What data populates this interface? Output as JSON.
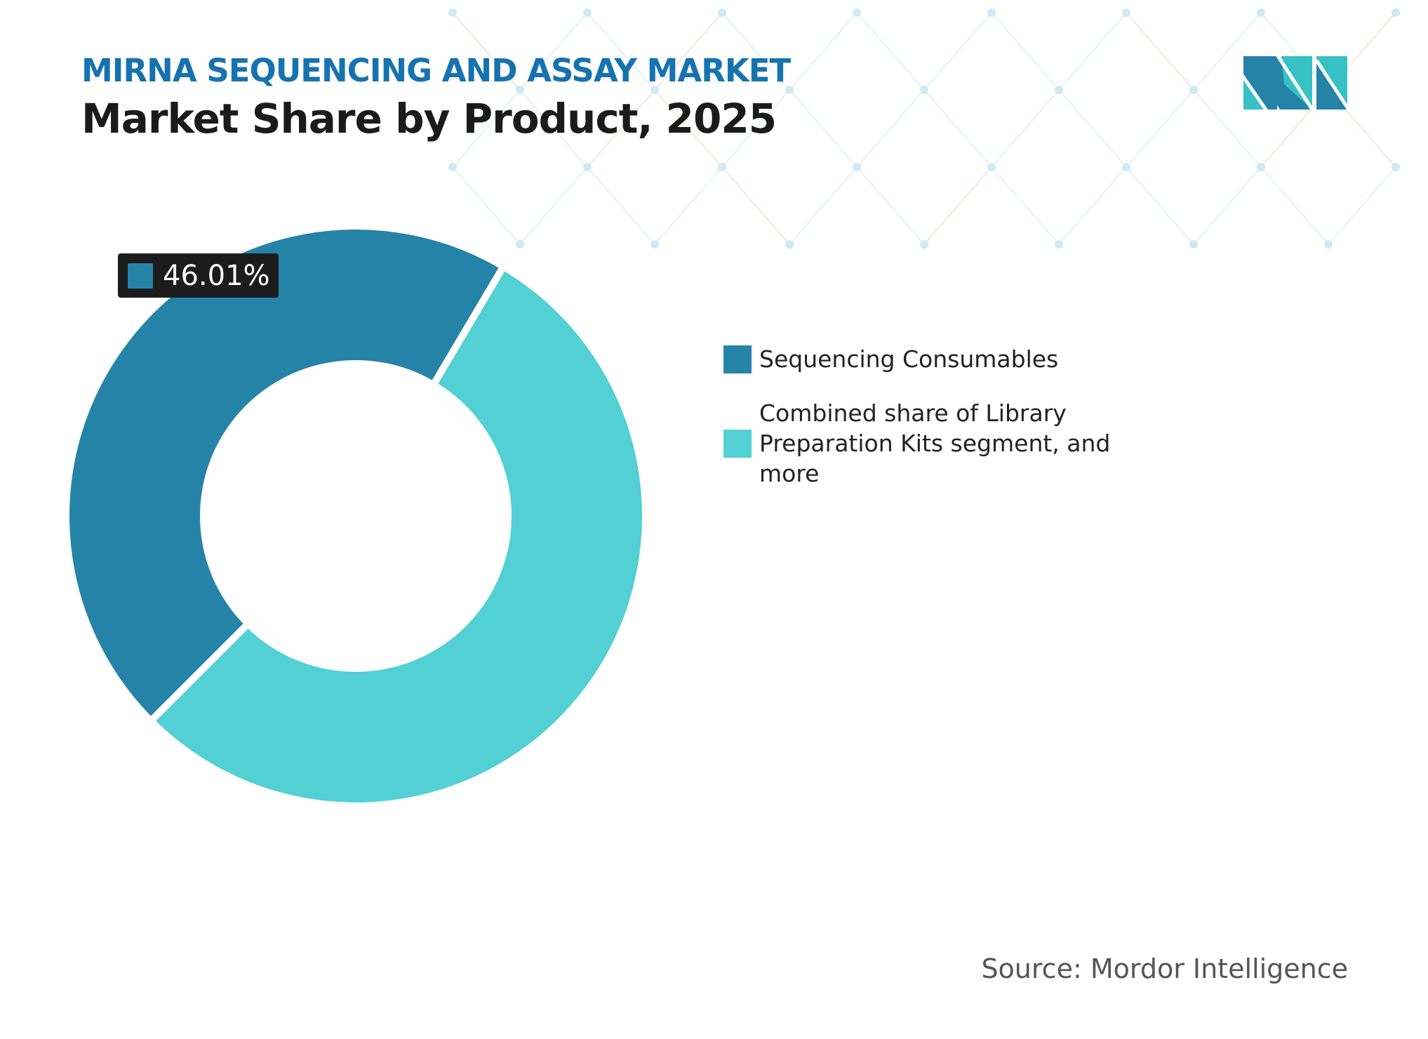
{
  "header": {
    "title": "MIRNA SEQUENCING AND ASSAY MARKET",
    "subtitle": "Market Share by Product, 2025"
  },
  "chart_data": {
    "type": "pie",
    "variant": "donut",
    "categories": [
      "Sequencing Consumables",
      "Combined share of Library Preparation Kits segment, and more"
    ],
    "values": [
      46.01,
      53.99
    ],
    "colors": [
      "#2683a8",
      "#52d0d3"
    ],
    "data_labels": [
      "46.01%",
      ""
    ],
    "legend_position": "right"
  },
  "source": "Source: Mordor Intelligence",
  "colors": {
    "title_accent": "#1673b0",
    "label_bg": "#1c1c1c"
  },
  "logo": {
    "text": "MN"
  }
}
